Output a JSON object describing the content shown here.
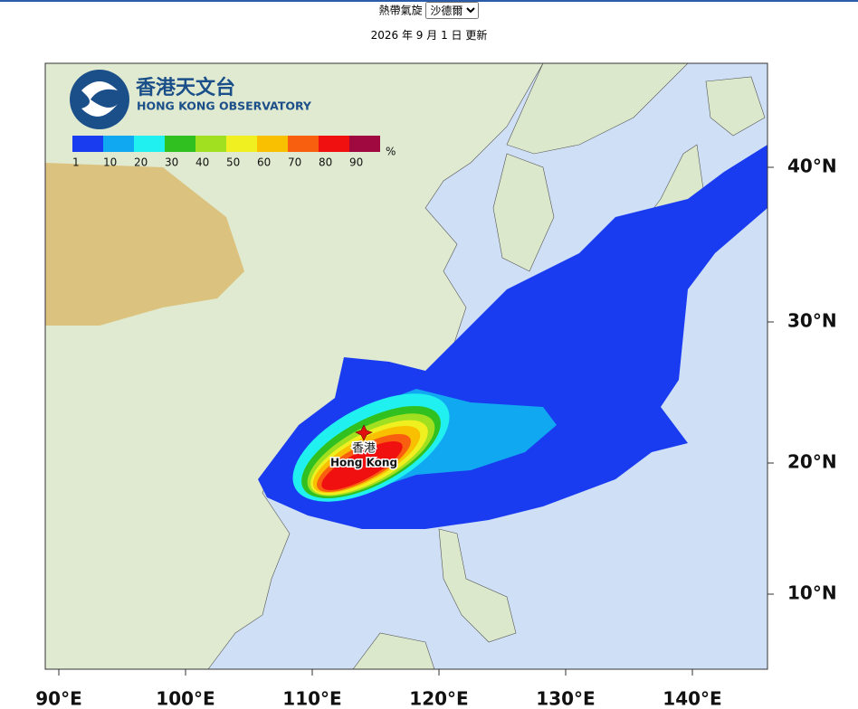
{
  "header": {
    "label": "熱帶氣旋",
    "select": "沙德爾",
    "updated": "2026 年 9 月 1 日 更新"
  },
  "map": {
    "logo": {
      "chinese": "香港天文台",
      "english": "HONG KONG OBSERVATORY"
    },
    "legend": {
      "labels": [
        1,
        10,
        20,
        30,
        40,
        50,
        60,
        70,
        80,
        90
      ],
      "unit": "%",
      "colors": [
        "#1a3cf0",
        "#10a8f0",
        "#20f0f0",
        "#30c020",
        "#a0e020",
        "#f0f020",
        "#f8c000",
        "#f86010",
        "#f01010",
        "#a00840"
      ]
    },
    "marker": {
      "chinese": "香港",
      "english": "Hong Kong"
    },
    "longitudes": [
      "90°E",
      "100°E",
      "110°E",
      "120°E",
      "130°E",
      "140°E"
    ],
    "latitudes": [
      "40°N",
      "30°N",
      "20°N",
      "10°N"
    ]
  }
}
